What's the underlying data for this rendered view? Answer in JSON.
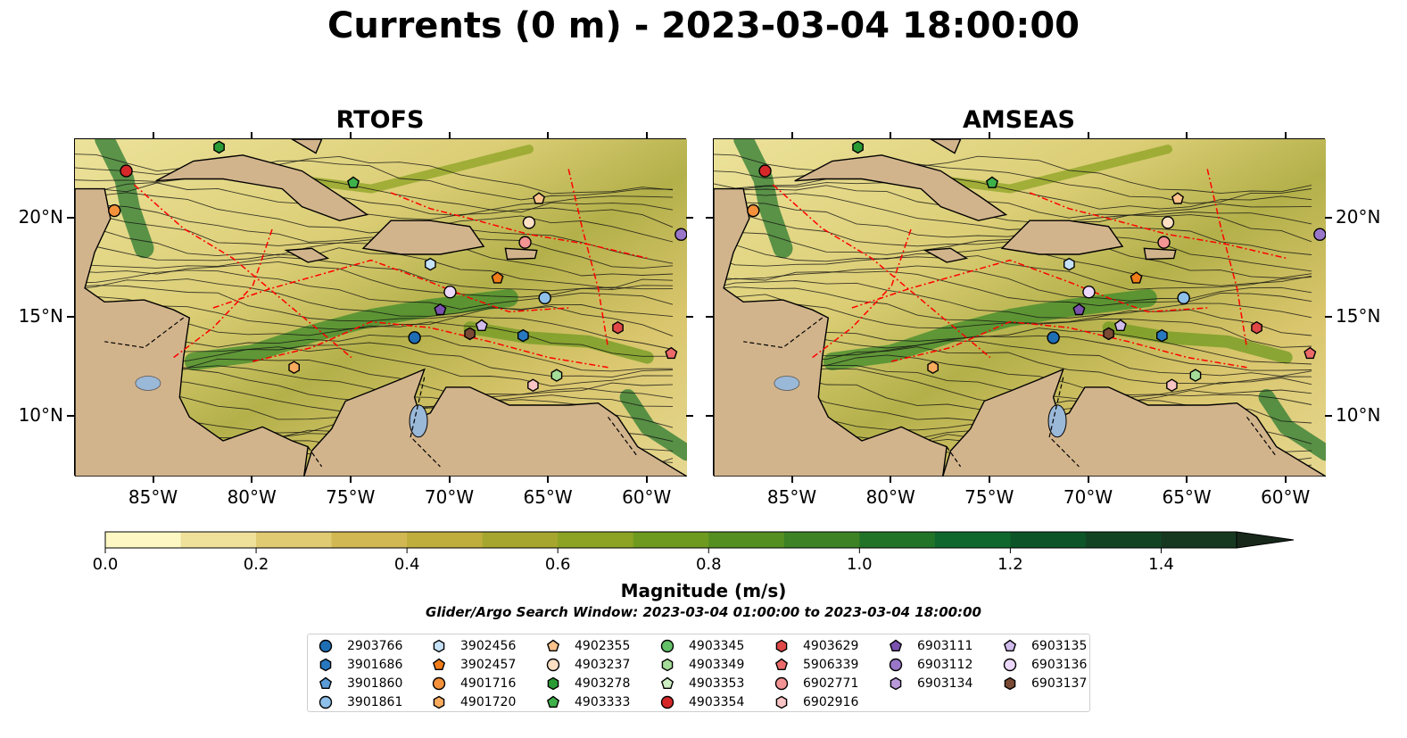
{
  "title": "Currents (0 m) - 2023-03-04 18:00:00",
  "panels": [
    {
      "title": "RTOFS"
    },
    {
      "title": "AMSEAS"
    }
  ],
  "axes": {
    "lon_ticks": [
      "85°W",
      "80°W",
      "75°W",
      "70°W",
      "65°W",
      "60°W"
    ],
    "lat_ticks": [
      "20°N",
      "15°N",
      "10°N"
    ]
  },
  "colorbar": {
    "label": "Magnitude (m/s)",
    "ticks": [
      "0.0",
      "0.2",
      "0.4",
      "0.6",
      "0.8",
      "1.0",
      "1.2",
      "1.4"
    ],
    "min": 0.0,
    "max": 1.5,
    "step": 0.1,
    "extend": "max",
    "colors": [
      "#fdf8c3",
      "#efe09a",
      "#e0ca72",
      "#d2b852",
      "#bfae3c",
      "#a6a62e",
      "#8ca323",
      "#6f9a20",
      "#548f22",
      "#3d8224",
      "#217328",
      "#10672d",
      "#0d5528",
      "#124424",
      "#163820",
      "#17281a"
    ]
  },
  "search_window": "Glider/Argo Search Window: 2023-03-04 01:00:00 to 2023-03-04 18:00:00",
  "colors": {
    "land": "#d2b48c",
    "lakes": "#9ab8d8",
    "eez_lines": "#ff0000"
  },
  "legend": {
    "columns": [
      [
        {
          "id": "2903766",
          "marker": "circle",
          "color": "#1f6eb4"
        },
        {
          "id": "3901686",
          "marker": "hexagon",
          "color": "#2878c0"
        },
        {
          "id": "3901860",
          "marker": "pentagon",
          "color": "#5a9bd8"
        },
        {
          "id": "3901861",
          "marker": "circle",
          "color": "#8fc0ea"
        }
      ],
      [
        {
          "id": "3902456",
          "marker": "hexagon",
          "color": "#c6e2f7"
        },
        {
          "id": "3902457",
          "marker": "pentagon",
          "color": "#f07d1a"
        },
        {
          "id": "4901716",
          "marker": "circle",
          "color": "#f5913a"
        },
        {
          "id": "4901720",
          "marker": "hexagon",
          "color": "#f9ab5e"
        }
      ],
      [
        {
          "id": "4902355",
          "marker": "pentagon",
          "color": "#fbc28c"
        },
        {
          "id": "4903237",
          "marker": "circle",
          "color": "#fde0c4"
        },
        {
          "id": "4903278",
          "marker": "hexagon",
          "color": "#2a9a34"
        },
        {
          "id": "4903333",
          "marker": "pentagon",
          "color": "#3fb14a"
        }
      ],
      [
        {
          "id": "4903345",
          "marker": "circle",
          "color": "#63c167"
        },
        {
          "id": "4903349",
          "marker": "hexagon",
          "color": "#a5dc98"
        },
        {
          "id": "4903353",
          "marker": "pentagon",
          "color": "#cdefc3"
        },
        {
          "id": "4903354",
          "marker": "circle",
          "color": "#d62828"
        }
      ],
      [
        {
          "id": "4903629",
          "marker": "hexagon",
          "color": "#e04848"
        },
        {
          "id": "5906339",
          "marker": "pentagon",
          "color": "#ec6a6a"
        },
        {
          "id": "6902771",
          "marker": "circle",
          "color": "#f39494"
        },
        {
          "id": "6902916",
          "marker": "hexagon",
          "color": "#f9c4c4"
        }
      ],
      [
        {
          "id": "6903111",
          "marker": "pentagon",
          "color": "#7b52ae"
        },
        {
          "id": "6903112",
          "marker": "circle",
          "color": "#9a76c8"
        },
        {
          "id": "6903134",
          "marker": "hexagon",
          "color": "#b899da"
        }
      ],
      [
        {
          "id": "6903135",
          "marker": "pentagon",
          "color": "#d2bcec"
        },
        {
          "id": "6903136",
          "marker": "circle",
          "color": "#ecd8fb"
        },
        {
          "id": "6903137",
          "marker": "hexagon",
          "color": "#7a4a34"
        }
      ]
    ]
  },
  "floats": [
    {
      "id": "2903766",
      "lon": -71.8,
      "lat": 14.0
    },
    {
      "id": "3901686",
      "lon": -66.3,
      "lat": 14.1
    },
    {
      "id": "3901861",
      "lon": -65.2,
      "lat": 16.0
    },
    {
      "id": "3902456",
      "lon": -71.0,
      "lat": 17.7
    },
    {
      "id": "3902457",
      "lon": -67.6,
      "lat": 17.0
    },
    {
      "id": "4901716",
      "lon": -87.0,
      "lat": 20.4
    },
    {
      "id": "4901720",
      "lon": -77.9,
      "lat": 12.5
    },
    {
      "id": "4902355",
      "lon": -65.5,
      "lat": 21.0
    },
    {
      "id": "4903237",
      "lon": -66.0,
      "lat": 19.8
    },
    {
      "id": "4903278",
      "lon": -81.7,
      "lat": 23.6
    },
    {
      "id": "4903333",
      "lon": -74.9,
      "lat": 21.8
    },
    {
      "id": "4903349",
      "lon": -64.6,
      "lat": 12.1
    },
    {
      "id": "4903354",
      "lon": -86.4,
      "lat": 22.4
    },
    {
      "id": "4903629",
      "lon": -61.5,
      "lat": 14.5
    },
    {
      "id": "5906339",
      "lon": -58.8,
      "lat": 13.2
    },
    {
      "id": "6902771",
      "lon": -66.2,
      "lat": 18.8
    },
    {
      "id": "6902916",
      "lon": -65.8,
      "lat": 11.6
    },
    {
      "id": "6903111",
      "lon": -70.5,
      "lat": 15.4
    },
    {
      "id": "6903112",
      "lon": -58.3,
      "lat": 19.2
    },
    {
      "id": "6903135",
      "lon": -68.4,
      "lat": 14.6
    },
    {
      "id": "6903136",
      "lon": -70.0,
      "lat": 16.3
    },
    {
      "id": "6903137",
      "lon": -69.0,
      "lat": 14.2
    }
  ],
  "extent": {
    "lon": [
      -89,
      -58
    ],
    "lat": [
      7,
      24
    ]
  }
}
